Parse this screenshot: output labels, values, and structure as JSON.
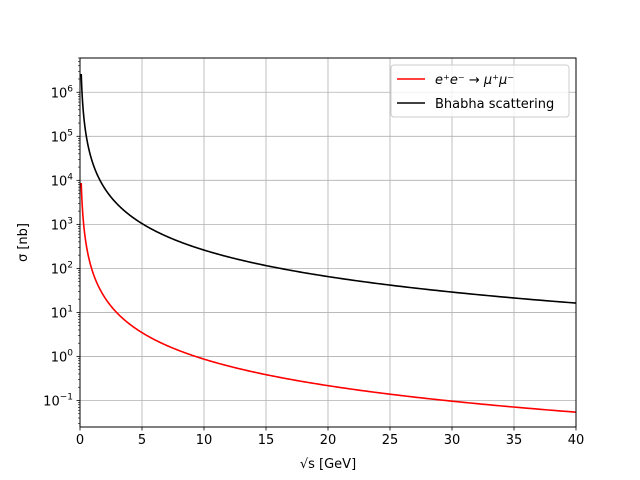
{
  "chart_data": {
    "type": "line",
    "title": "",
    "xlabel": "√s [GeV]",
    "ylabel": "σ [nb]",
    "xlim": [
      0,
      40
    ],
    "ylim": [
      0.025,
      6000000
    ],
    "yscale": "log",
    "grid": true,
    "legend_position": "top-right",
    "x_ticks": [
      0,
      5,
      10,
      15,
      20,
      25,
      30,
      35,
      40
    ],
    "x_tick_labels": [
      "0",
      "5",
      "10",
      "15",
      "20",
      "25",
      "30",
      "35",
      "40"
    ],
    "y_ticks": [
      0.1,
      1,
      10,
      100,
      1000,
      10000,
      100000,
      1000000
    ],
    "y_tick_labels": [
      {
        "base": "10",
        "exp": "−1"
      },
      {
        "base": "10",
        "exp": "0"
      },
      {
        "base": "10",
        "exp": "1"
      },
      {
        "base": "10",
        "exp": "2"
      },
      {
        "base": "10",
        "exp": "3"
      },
      {
        "base": "10",
        "exp": "4"
      },
      {
        "base": "10",
        "exp": "5"
      },
      {
        "base": "10",
        "exp": "6"
      }
    ],
    "series": [
      {
        "name": "e⁺e⁻ → μ⁺μ⁻",
        "color": "#ff0000",
        "x": [
          0.1,
          0.2,
          0.3,
          0.5,
          0.75,
          1,
          1.5,
          2,
          3,
          4,
          5,
          6,
          7,
          8,
          10,
          12,
          15,
          20,
          25,
          30,
          35,
          40
        ],
        "y": [
          8700,
          2170,
          965,
          347,
          154,
          86.8,
          38.6,
          21.7,
          9.65,
          5.43,
          3.47,
          2.41,
          1.77,
          1.36,
          0.868,
          0.603,
          0.386,
          0.217,
          0.139,
          0.0965,
          0.0709,
          0.0543
        ]
      },
      {
        "name": "Bhabha scattering",
        "color": "#000000",
        "x": [
          0.1,
          0.2,
          0.3,
          0.5,
          0.75,
          1,
          1.5,
          2,
          3,
          4,
          5,
          6,
          7,
          8,
          10,
          12,
          15,
          20,
          25,
          30,
          35,
          40
        ],
        "y": [
          2600000,
          650000,
          289000,
          104000,
          46200,
          26000,
          11600,
          6500,
          2890,
          1625,
          1040,
          722,
          531,
          406,
          260,
          181,
          116,
          65,
          41.6,
          28.9,
          21.2,
          16.3
        ]
      }
    ]
  }
}
